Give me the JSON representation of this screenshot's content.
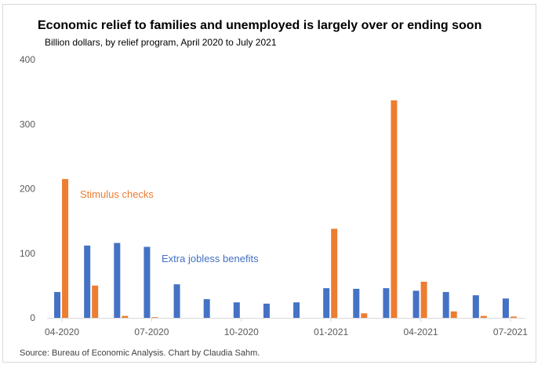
{
  "title": "Economic relief to families and unemployed is largely over or ending soon",
  "subtitle": "Billion dollars, by relief program, April 2020 to July 2021",
  "source": "Source: Bureau of Economic Analysis. Chart by Claudia Sahm.",
  "colors": {
    "jobless": "#4472C4",
    "stimulus": "#ED7D31",
    "axis": "#d9d9d9",
    "tick_text": "#595959"
  },
  "chart_data": {
    "type": "bar",
    "categories": [
      "04-2020",
      "05-2020",
      "06-2020",
      "07-2020",
      "08-2020",
      "09-2020",
      "10-2020",
      "11-2020",
      "12-2020",
      "01-2021",
      "02-2021",
      "03-2021",
      "04-2021",
      "05-2021",
      "06-2021",
      "07-2021"
    ],
    "x_tick_labels": [
      "04-2020",
      "07-2020",
      "10-2020",
      "01-2021",
      "04-2021",
      "07-2021"
    ],
    "series": [
      {
        "name": "Extra jobless benefits",
        "color": "#4472C4",
        "values": [
          40,
          112,
          116,
          110,
          52,
          29,
          24,
          22,
          24,
          46,
          45,
          46,
          42,
          40,
          35,
          30
        ]
      },
      {
        "name": "Stimulus checks",
        "color": "#ED7D31",
        "values": [
          215,
          50,
          3,
          1,
          0,
          0,
          0,
          0,
          0,
          138,
          7,
          337,
          56,
          10,
          3,
          2
        ]
      }
    ],
    "ylim": [
      0,
      400
    ],
    "yticks": [
      0,
      100,
      200,
      300,
      400
    ],
    "grid": false,
    "legend": "inline annotations"
  }
}
